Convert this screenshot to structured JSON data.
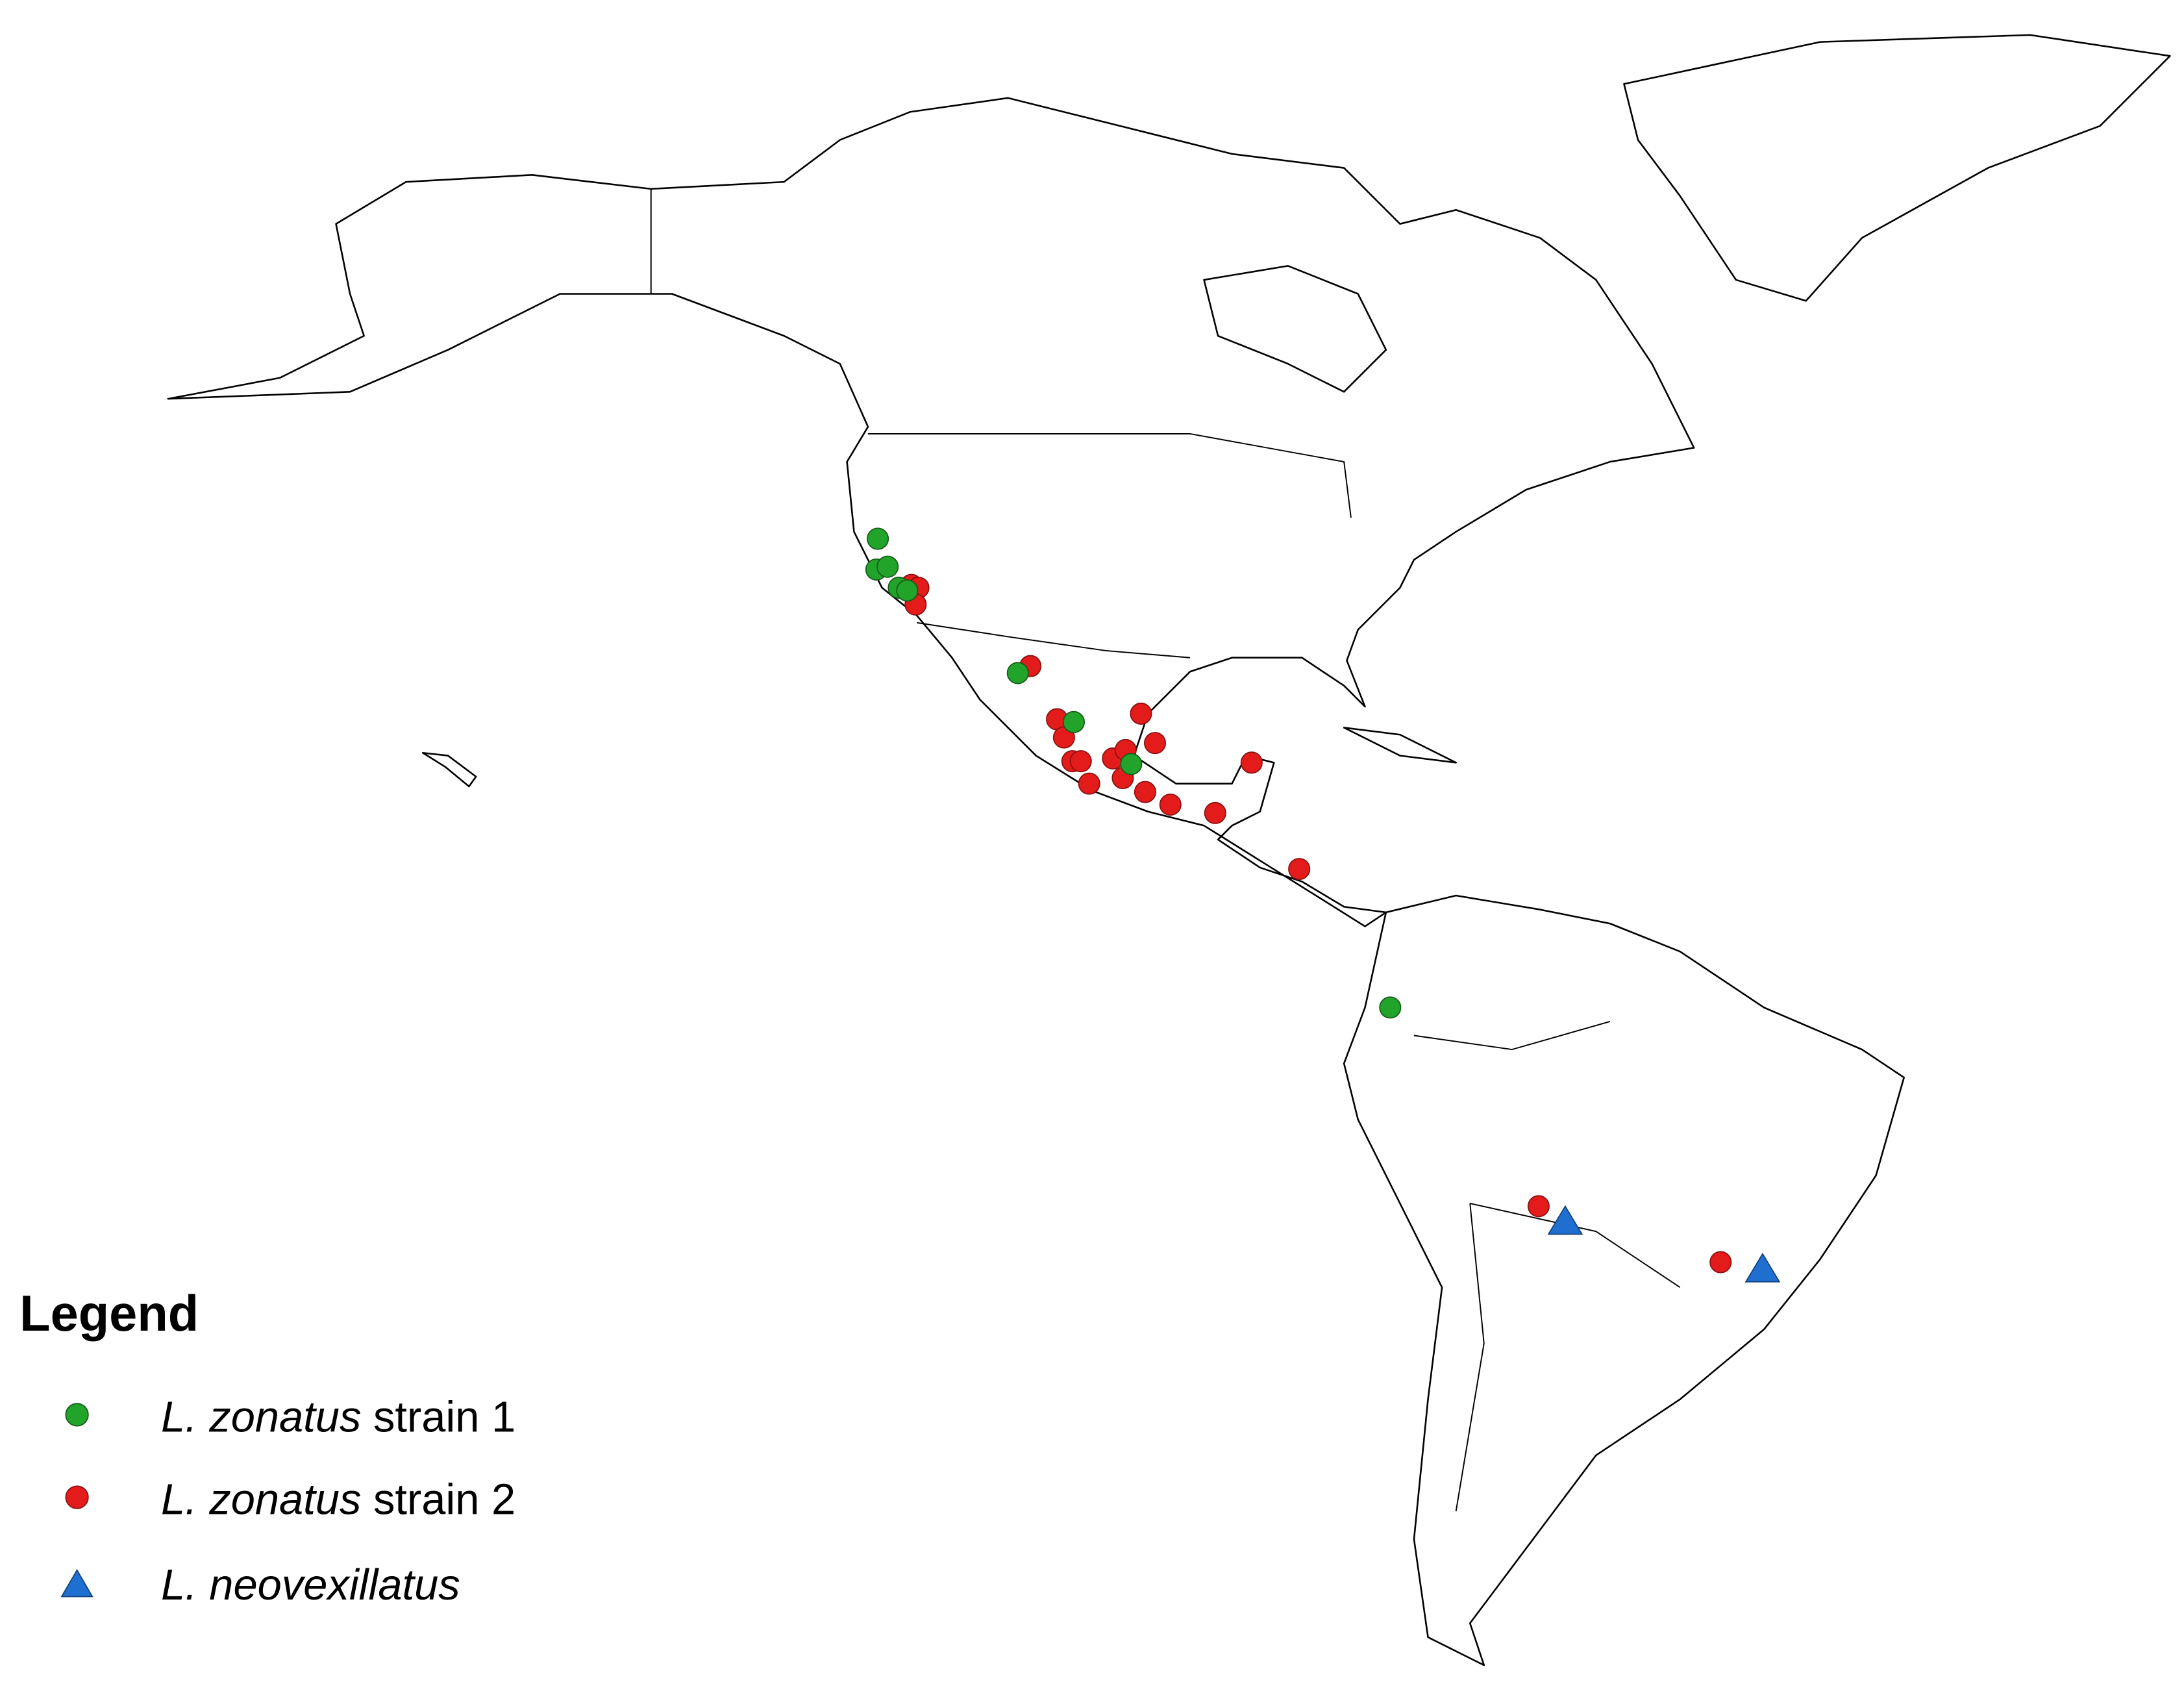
{
  "legend": {
    "title": "Legend",
    "items": [
      {
        "species": "L. zonatus",
        "label": "strain 1"
      },
      {
        "species": "L. zonatus",
        "label": "strain 2"
      },
      {
        "species": "L. neovexillatus"
      }
    ]
  }
}
